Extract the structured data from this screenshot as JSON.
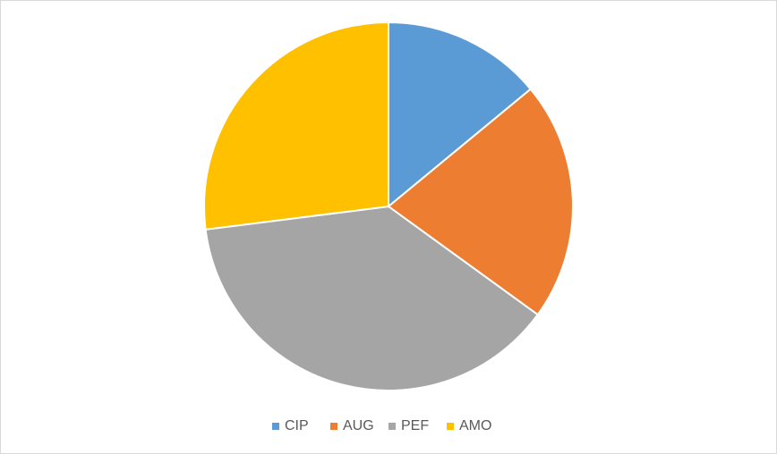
{
  "chart_data": {
    "type": "pie",
    "categories": [
      "CIP",
      "AUG",
      "PEF",
      "AMO"
    ],
    "values": [
      14,
      21,
      38,
      27
    ],
    "colors": [
      "#5b9bd5",
      "#ed7d31",
      "#a5a5a5",
      "#ffc000"
    ],
    "legend": "bottom"
  }
}
